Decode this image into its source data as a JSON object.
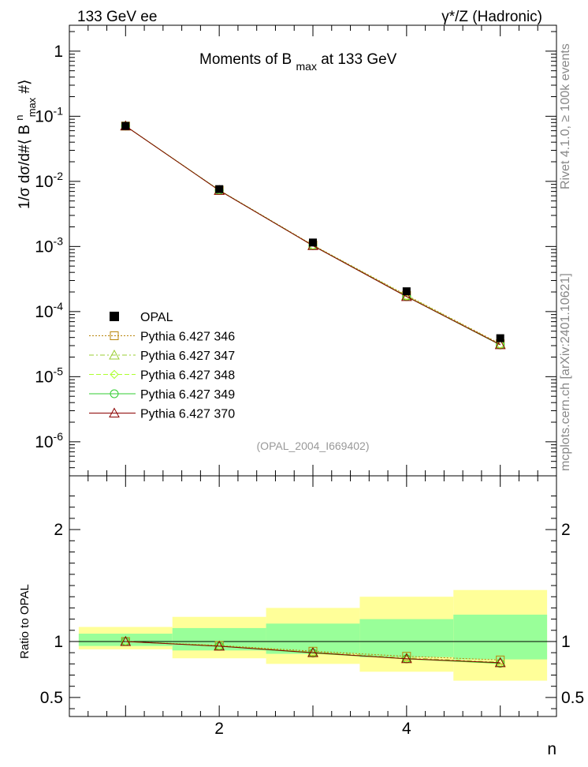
{
  "header": {
    "left": "133 GeV ee",
    "right": "γ*/Z (Hadronic)"
  },
  "side_labels": {
    "rivet": "Rivet 4.1.0, ≥ 100k events",
    "mcplots": "mcplots.cern.ch [arXiv:2401.10621]"
  },
  "reference": "(OPAL_2004_I669402)",
  "chart_data": [
    {
      "type": "line",
      "title": "Moments of B max at 133 GeV",
      "title_main": "Moments of B",
      "title_sub": "max",
      "title_rest": "at 133 GeV",
      "ylabel": "1/σ  dσ/d#⟨ B^n_max #⟩",
      "ylabel_a": "1/σ  dσ/d#⟨ B",
      "ylabel_sup": "n",
      "ylabel_sub": "max",
      "ylabel_b": "#⟩",
      "yscale": "log",
      "ylim": [
        3e-07,
        2.5
      ],
      "xlim": [
        0.4,
        5.6
      ],
      "yticks": [
        {
          "v": 1,
          "base": "1",
          "exp": ""
        },
        {
          "v": 0.1,
          "base": "10",
          "exp": "-1"
        },
        {
          "v": 0.01,
          "base": "10",
          "exp": "-2"
        },
        {
          "v": 0.001,
          "base": "10",
          "exp": "-3"
        },
        {
          "v": 0.0001,
          "base": "10",
          "exp": "-4"
        },
        {
          "v": 1e-05,
          "base": "10",
          "exp": "-5"
        },
        {
          "v": 1e-06,
          "base": "10",
          "exp": "-6"
        }
      ],
      "x": [
        1,
        2,
        3,
        4,
        5
      ],
      "data": {
        "name": "OPAL",
        "values": [
          0.071,
          0.0076,
          0.00115,
          0.000205,
          3.9e-05
        ]
      },
      "series": [
        {
          "name": "Pythia 6.427 346",
          "color": "#b8860b",
          "marker": "square",
          "dash": "2,2",
          "values": [
            0.0708,
            0.00735,
            0.00105,
            0.000178,
            3.2e-05
          ]
        },
        {
          "name": "Pythia 6.427 347",
          "color": "#9acd32",
          "marker": "triangle",
          "dash": "6,3,2,3",
          "values": [
            0.0709,
            0.0073,
            0.00104,
            0.000175,
            3.15e-05
          ]
        },
        {
          "name": "Pythia 6.427 348",
          "color": "#adff2f",
          "marker": "diamond",
          "dash": "6,3",
          "values": [
            0.0709,
            0.00728,
            0.00103,
            0.000172,
            3.1e-05
          ]
        },
        {
          "name": "Pythia 6.427 349",
          "color": "#32cd32",
          "marker": "circle",
          "dash": "",
          "values": [
            0.071,
            0.00728,
            0.00103,
            0.00017,
            3.07e-05
          ]
        },
        {
          "name": "Pythia 6.427 370",
          "color": "#8b0000",
          "marker": "triangle",
          "dash": "",
          "values": [
            0.0709,
            0.00725,
            0.00103,
            0.00017,
            3.1e-05
          ]
        }
      ]
    },
    {
      "type": "line",
      "title": "",
      "xlabel": "n",
      "ylabel": "Ratio to OPAL",
      "ylim": [
        0.33,
        2.48
      ],
      "xlim": [
        0.4,
        5.6
      ],
      "yticks": [
        "0.5",
        "1",
        "2"
      ],
      "ytick_values": [
        0.5,
        1,
        2
      ],
      "xticks": [
        "2",
        "4"
      ],
      "xtick_values": [
        2,
        4
      ],
      "bands": [
        {
          "x": [
            0.5,
            1.5
          ],
          "yellow": [
            0.93,
            1.13
          ],
          "green": [
            0.96,
            1.07
          ]
        },
        {
          "x": [
            1.5,
            2.5
          ],
          "yellow": [
            0.85,
            1.22
          ],
          "green": [
            0.92,
            1.12
          ]
        },
        {
          "x": [
            2.5,
            3.5
          ],
          "yellow": [
            0.8,
            1.3
          ],
          "green": [
            0.89,
            1.16
          ]
        },
        {
          "x": [
            3.5,
            4.5
          ],
          "yellow": [
            0.73,
            1.4
          ],
          "green": [
            0.86,
            1.2
          ]
        },
        {
          "x": [
            4.5,
            5.5
          ],
          "yellow": [
            0.65,
            1.46
          ],
          "green": [
            0.84,
            1.24
          ]
        }
      ],
      "x": [
        1,
        2,
        3,
        4,
        5
      ],
      "series": [
        {
          "name": "Pythia 6.427 346",
          "values": [
            1.0,
            0.965,
            0.913,
            0.868,
            0.835
          ]
        },
        {
          "name": "Pythia 6.427 347",
          "values": [
            1.0,
            0.962,
            0.905,
            0.855,
            0.815
          ]
        },
        {
          "name": "Pythia 6.427 348",
          "values": [
            1.0,
            0.96,
            0.9,
            0.845,
            0.81
          ]
        },
        {
          "name": "Pythia 6.427 349",
          "values": [
            1.0,
            0.958,
            0.897,
            0.845,
            0.805
          ]
        },
        {
          "name": "Pythia 6.427 370",
          "values": [
            1.0,
            0.958,
            0.9,
            0.846,
            0.81
          ]
        }
      ]
    }
  ]
}
